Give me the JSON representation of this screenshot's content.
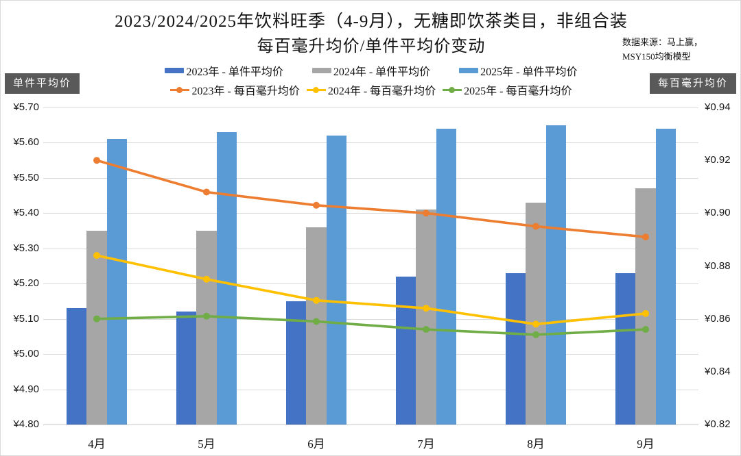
{
  "title": {
    "line1": "2023/2024/2025年饮料旺季（4-9月），无糖即饮茶类目，非组合装",
    "line2": "每百毫升均价/单件平均价变动"
  },
  "source": {
    "line1": "数据来源：马上赢，",
    "line2": "MSY150均衡模型"
  },
  "colors": {
    "bar_2023": "#4472C4",
    "bar_2024": "#A6A6A6",
    "bar_2025": "#5B9BD5",
    "line_2023": "#ED7D31",
    "line_2024": "#FFC000",
    "line_2025": "#70AD47",
    "gridline": "#D9D9D9",
    "axis_label_bg": "#595959"
  },
  "chart_data": {
    "type": "bar",
    "subtype": "combo-bar-line-dual-axis",
    "categories": [
      "4月",
      "5月",
      "6月",
      "7月",
      "8月",
      "9月"
    ],
    "bar_series": [
      {
        "name": "2023年 - 单件平均价",
        "axis": "left",
        "color": "#4472C4",
        "values": [
          5.13,
          5.12,
          5.15,
          5.22,
          5.23,
          5.23
        ]
      },
      {
        "name": "2024年 - 单件平均价",
        "axis": "left",
        "color": "#A6A6A6",
        "values": [
          5.35,
          5.35,
          5.36,
          5.41,
          5.43,
          5.47
        ]
      },
      {
        "name": "2025年 - 单件平均价",
        "axis": "left",
        "color": "#5B9BD5",
        "values": [
          5.61,
          5.63,
          5.62,
          5.64,
          5.65,
          5.64
        ]
      }
    ],
    "line_series": [
      {
        "name": "2023年 - 每百毫升均价",
        "axis": "right",
        "color": "#ED7D31",
        "values": [
          0.92,
          0.908,
          0.903,
          0.9,
          0.895,
          0.891
        ]
      },
      {
        "name": "2024年 - 每百毫升均价",
        "axis": "right",
        "color": "#FFC000",
        "values": [
          0.884,
          0.875,
          0.867,
          0.864,
          0.858,
          0.862
        ]
      },
      {
        "name": "2025年 - 每百毫升均价",
        "axis": "right",
        "color": "#70AD47",
        "values": [
          0.86,
          0.861,
          0.859,
          0.856,
          0.854,
          0.856
        ]
      }
    ],
    "left_axis": {
      "label": "单件平均价",
      "min": 4.8,
      "max": 5.7,
      "step": 0.1,
      "tick_labels": [
        "¥5.70",
        "¥5.60",
        "¥5.50",
        "¥5.40",
        "¥5.30",
        "¥5.20",
        "¥5.10",
        "¥5.00",
        "¥4.90",
        "¥4.80"
      ]
    },
    "right_axis": {
      "label": "每百毫升均价",
      "min": 0.82,
      "max": 0.94,
      "step": 0.02,
      "tick_labels": [
        "¥0.94",
        "¥0.92",
        "¥0.90",
        "¥0.88",
        "¥0.86",
        "¥0.84",
        "¥0.82"
      ]
    },
    "grid": "horizontal",
    "legend_position": "top"
  }
}
